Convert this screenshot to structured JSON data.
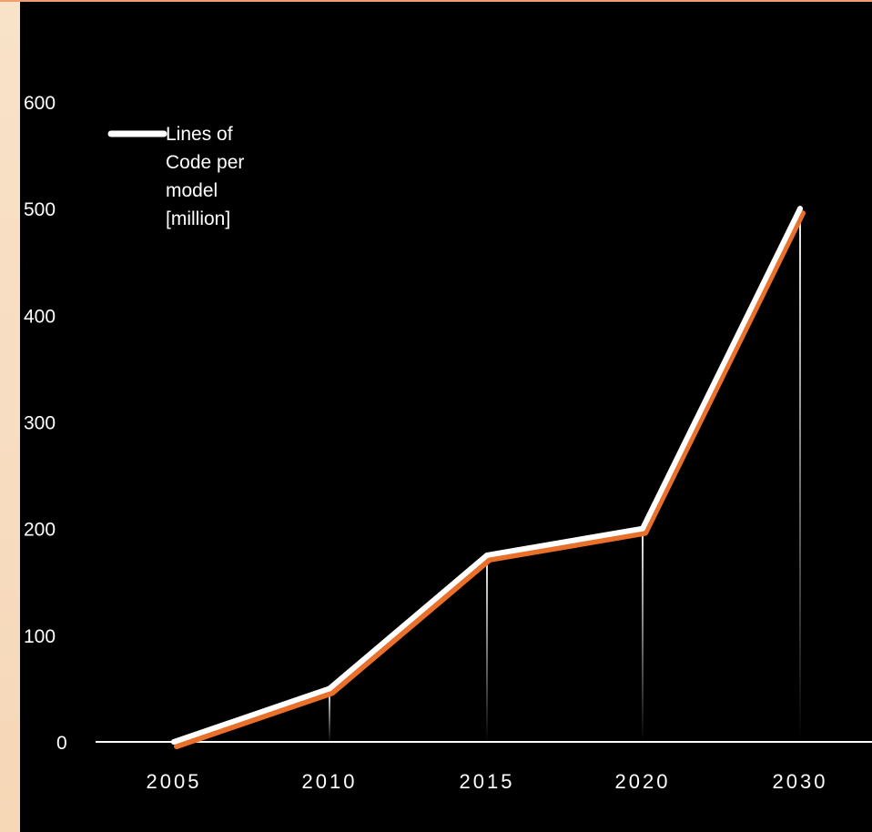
{
  "chart_data": {
    "type": "line",
    "categories": [
      "2005",
      "2010",
      "2015",
      "2020",
      "2030"
    ],
    "series": [
      {
        "name": "Lines of Code per model [million]",
        "values": [
          0,
          50,
          175,
          200,
          500
        ]
      }
    ],
    "ylim": [
      0,
      600
    ],
    "yticks": [
      0,
      100,
      200,
      300,
      400,
      500,
      600
    ],
    "legend": {
      "position": "top-left",
      "lines": [
        "Lines of",
        "Code per",
        "model",
        "[million]"
      ]
    },
    "grid": false,
    "colors": {
      "background": "#000000",
      "line": "#ffffff",
      "line_shadow": "#e8702a",
      "axis": "#ffffff",
      "border": "#f8e2c8"
    }
  }
}
